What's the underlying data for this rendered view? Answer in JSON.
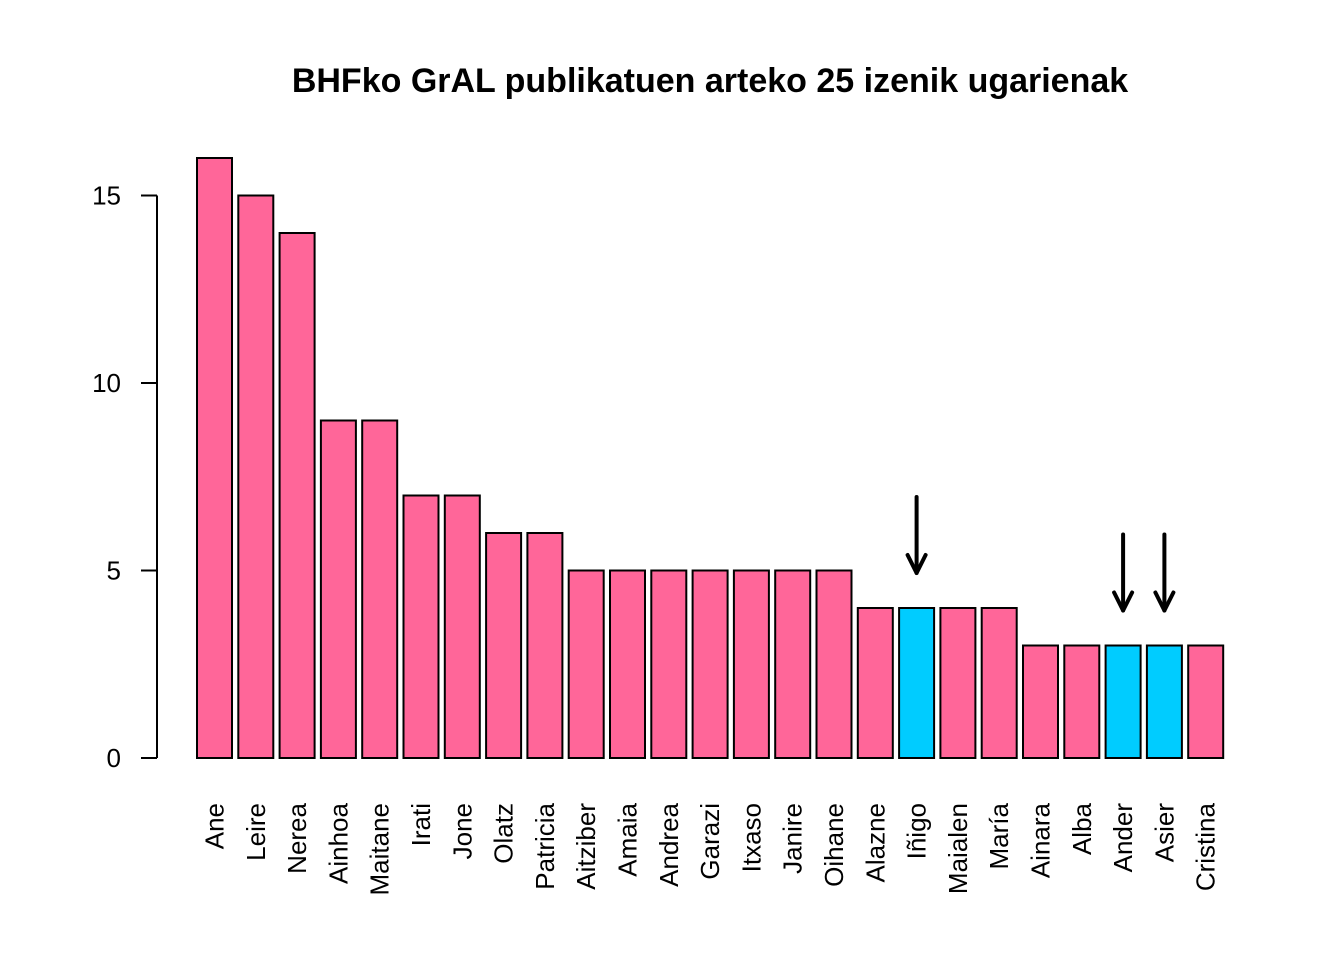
{
  "chart_data": {
    "type": "bar",
    "title": "BHFko GrAL publikatuen arteko 25 izenik ugarienak",
    "xlabel": "",
    "ylabel": "",
    "ylim": [
      0,
      16
    ],
    "yticks": [
      0,
      5,
      10,
      15
    ],
    "categories": [
      "Ane",
      "Leire",
      "Nerea",
      "Ainhoa",
      "Maitane",
      "Irati",
      "Jone",
      "Olatz",
      "Patricia",
      "Aitziber",
      "Amaia",
      "Andrea",
      "Garazi",
      "Itxaso",
      "Janire",
      "Oihane",
      "Alazne",
      "Iñigo",
      "Maialen",
      "María",
      "Ainara",
      "Alba",
      "Ander",
      "Asier",
      "Cristina"
    ],
    "values": [
      16,
      15,
      14,
      9,
      9,
      7,
      7,
      6,
      6,
      5,
      5,
      5,
      5,
      5,
      5,
      5,
      4,
      4,
      4,
      4,
      3,
      3,
      3,
      3,
      3
    ],
    "highlighted": [
      "Iñigo",
      "Ander",
      "Asier"
    ],
    "colors": {
      "default": "#ff6699",
      "highlight": "#00ccff"
    },
    "grid": false,
    "annotations": [
      {
        "type": "arrow",
        "target": "Iñigo"
      },
      {
        "type": "arrow",
        "target": "Ander"
      },
      {
        "type": "arrow",
        "target": "Asier"
      }
    ]
  }
}
